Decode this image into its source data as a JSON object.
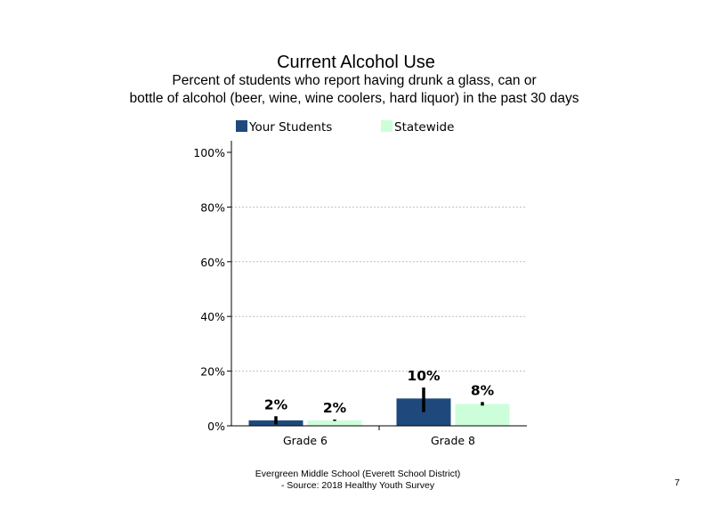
{
  "header": {
    "title": "Current  Alcohol Use",
    "subtitle_line1": "Percent of students who report having drunk a glass, can or",
    "subtitle_line2": "bottle  of alcohol (beer, wine, wine coolers, hard liquor)  in the past 30 days"
  },
  "footer": {
    "line1": "Evergreen Middle  School (Everett School District)",
    "line2": "- Source: 2018 Healthy  Youth Survey",
    "page_number": "7"
  },
  "colors": {
    "your_students": "#1F497D",
    "statewide": "#CCFFD9",
    "error_bar": "#000000",
    "grid": "#BFBFBF",
    "axis": "#000000"
  },
  "chart_data": {
    "type": "bar",
    "title": "Current  Alcohol Use",
    "categories": [
      "Grade 6",
      "Grade 8"
    ],
    "series": [
      {
        "name": "Your Students",
        "values": [
          2,
          10
        ],
        "labels": [
          "2%",
          "10%"
        ],
        "error_low": [
          0.5,
          5
        ],
        "error_high": [
          3.5,
          14
        ]
      },
      {
        "name": "Statewide",
        "values": [
          2,
          8
        ],
        "labels": [
          "2%",
          "8%"
        ],
        "error_low": [
          1.8,
          7.4
        ],
        "error_high": [
          2.3,
          8.7
        ]
      }
    ],
    "yticks": [
      0,
      20,
      40,
      60,
      80,
      100
    ],
    "ytick_labels": [
      "0%",
      "20%",
      "40%",
      "60%",
      "80%",
      "100%"
    ],
    "ylim": [
      0,
      100
    ],
    "grid": true,
    "legend_position": "top"
  }
}
